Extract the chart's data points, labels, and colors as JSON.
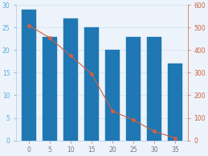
{
  "bar_x": [
    0,
    5,
    10,
    15,
    20,
    25,
    30,
    35
  ],
  "bar_heights": [
    29,
    23,
    27,
    25,
    20,
    23,
    23,
    17
  ],
  "bar_width": 3.5,
  "bar_color": "#1f77b4",
  "bar_edgecolor": "#1f77b4",
  "line_x": [
    0,
    5,
    10,
    15,
    20,
    25,
    30,
    35
  ],
  "line_y": [
    510,
    455,
    375,
    295,
    130,
    90,
    40,
    10
  ],
  "line_color": "#d45f3c",
  "line_style": "-",
  "line_marker": "o",
  "line_markersize": 2.5,
  "left_ylim": [
    0,
    30
  ],
  "right_ylim": [
    0,
    600
  ],
  "left_yticks": [
    0,
    5,
    10,
    15,
    20,
    25,
    30
  ],
  "right_yticks": [
    0,
    100,
    200,
    300,
    400,
    500,
    600
  ],
  "xlim": [
    -3,
    38
  ],
  "xticks": [
    0,
    5,
    10,
    15,
    20,
    25,
    30,
    35
  ],
  "left_tick_color": "#5aabdc",
  "right_tick_color": "#d45f3c",
  "grid_color": "#d0dff0",
  "bg_color": "#edf3fa",
  "spine_color": "#aac8e8",
  "tick_label_size": 5.5
}
